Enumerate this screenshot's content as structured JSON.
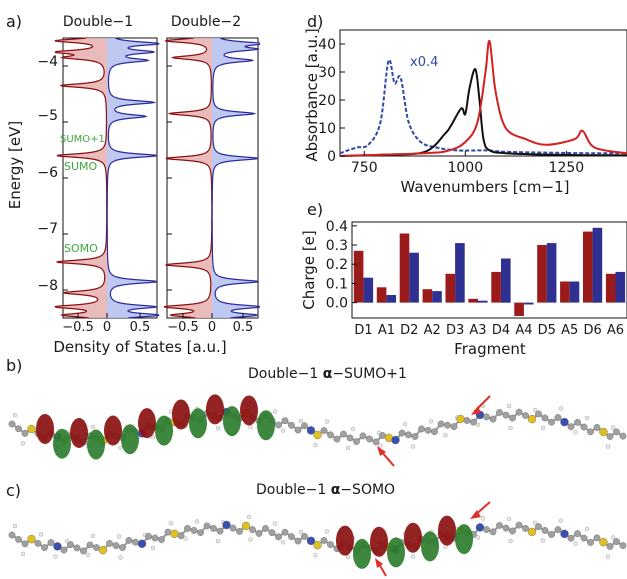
{
  "panel_labels": {
    "a": "a)",
    "b": "b)",
    "c": "c)",
    "d": "d)",
    "e": "e)"
  },
  "colors": {
    "red": "#c62828",
    "darkred": "#8b1010",
    "blue": "#2b2b9e",
    "green": "#3fa53f",
    "black": "#111111"
  },
  "dos": {
    "ylabel": "Energy [eV]",
    "xlabel": "Density of States [a.u.]",
    "yticks": [
      "−4",
      "−5",
      "−6",
      "−7",
      "−8"
    ],
    "xticks": [
      "−0.5",
      "0",
      "0.5"
    ],
    "panels": [
      {
        "title": "Double−1"
      },
      {
        "title": "Double−2"
      }
    ],
    "annotations": {
      "sumo1": "SUMO+1",
      "sumo": "SUMO",
      "somo": "SOMO"
    }
  },
  "chart_data": [
    {
      "type": "line",
      "title": "",
      "xlabel": "Wavenumbers [cm−1]",
      "ylabel": "Absorbance [a.u.]",
      "xlim": [
        690,
        1400
      ],
      "ylim": [
        0,
        45
      ],
      "xticks": [
        "750",
        "1000",
        "1250"
      ],
      "yticks": [
        "0",
        "10",
        "20",
        "30",
        "40"
      ],
      "annotation": "x0.4",
      "series": [
        {
          "style": "dashed",
          "color": "#3048a8",
          "x": [
            690,
            730,
            760,
            790,
            810,
            825,
            840,
            860,
            890,
            930,
            980,
            1050,
            1100,
            1200,
            1300,
            1400
          ],
          "y": [
            1,
            3,
            4,
            12,
            34,
            26,
            28,
            12,
            5,
            3,
            2,
            2,
            1.5,
            1.2,
            1,
            1
          ]
        },
        {
          "style": "solid",
          "color": "#111111",
          "x": [
            690,
            800,
            900,
            950,
            965,
            990,
            1000,
            1010,
            1025,
            1035,
            1045,
            1060,
            1100,
            1200,
            1300,
            1400
          ],
          "y": [
            0,
            0.5,
            1.5,
            8,
            11,
            17,
            15,
            24,
            31,
            20,
            6,
            2,
            1,
            0.5,
            0.3,
            0.2
          ]
        },
        {
          "style": "solid",
          "color": "#d42020",
          "x": [
            690,
            900,
            960,
            1000,
            1030,
            1050,
            1060,
            1075,
            1100,
            1150,
            1200,
            1270,
            1290,
            1320,
            1400
          ],
          "y": [
            0,
            1,
            2,
            5,
            12,
            30,
            41,
            23,
            10,
            6,
            4,
            6,
            9,
            3,
            1
          ]
        }
      ]
    },
    {
      "type": "bar",
      "xlabel": "Fragment",
      "ylabel": "Charge [e]",
      "ylim": [
        -0.08,
        0.42
      ],
      "yticks": [
        "0.0",
        "0.1",
        "0.2",
        "0.3",
        "0.4"
      ],
      "categories": [
        "D1",
        "A1",
        "D2",
        "A2",
        "D3",
        "A3",
        "D4",
        "A4",
        "D5",
        "A5",
        "D6",
        "A6"
      ],
      "series": [
        {
          "color": "#9b1a1a",
          "values": [
            0.27,
            0.08,
            0.36,
            0.07,
            0.15,
            0.02,
            0.16,
            -0.07,
            0.3,
            0.11,
            0.37,
            0.15
          ]
        },
        {
          "color": "#2e3192",
          "values": [
            0.13,
            0.04,
            0.26,
            0.06,
            0.31,
            0.01,
            0.23,
            -0.01,
            0.31,
            0.11,
            0.39,
            0.16
          ]
        }
      ]
    }
  ],
  "molecules": {
    "b_title_pre": "Double−1 ",
    "b_title_sym": "α",
    "b_title_post": "−SUMO+1",
    "c_title_pre": "Double−1 ",
    "c_title_sym": "α",
    "c_title_post": "−SOMO"
  }
}
